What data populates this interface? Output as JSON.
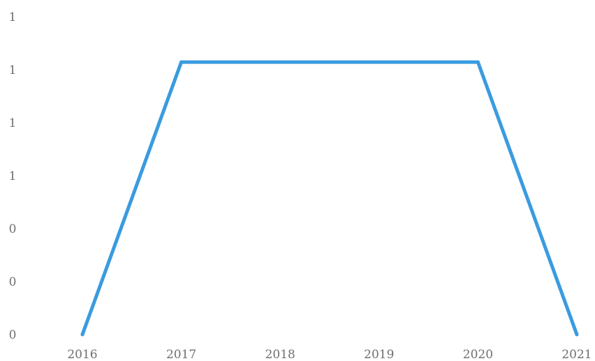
{
  "chart_data": {
    "type": "line",
    "title": "",
    "xlabel": "",
    "ylabel": "",
    "categories": [
      "2016",
      "2017",
      "2018",
      "2019",
      "2020",
      "2021"
    ],
    "series": [
      {
        "values": [
          0,
          1.2,
          1.2,
          1.2,
          1.2,
          0
        ]
      }
    ],
    "y_tick_labels": [
      "0",
      "0",
      "0",
      "1",
      "1",
      "1",
      "1"
    ],
    "ylim": [
      0,
      1.4
    ],
    "grid": false,
    "legend": "none",
    "colors": {
      "line": "#3a9be0",
      "axis_text": "#6f6f6f"
    }
  }
}
